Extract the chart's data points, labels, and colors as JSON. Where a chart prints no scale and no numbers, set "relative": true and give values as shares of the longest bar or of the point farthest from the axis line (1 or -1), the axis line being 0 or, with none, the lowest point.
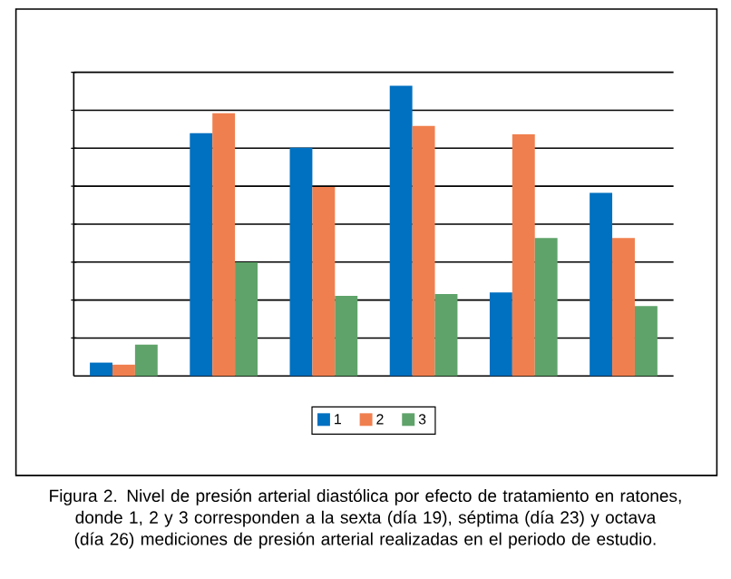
{
  "chart_data": {
    "type": "bar",
    "relative": true,
    "categories": [
      null,
      null,
      null,
      null,
      null,
      null
    ],
    "series": [
      {
        "name": "1",
        "color": "#0070c0",
        "values": [
          0.046,
          0.836,
          0.786,
          1,
          0.288,
          0.631
        ]
      },
      {
        "name": "2",
        "color": "#f07f4f",
        "values": [
          0.039,
          0.905,
          0.651,
          0.861,
          0.832,
          0.475
        ]
      },
      {
        "name": "3",
        "color": "#5fa36a",
        "values": [
          0.108,
          0.392,
          0.276,
          0.282,
          0.475,
          0.241
        ]
      }
    ],
    "grid": "y",
    "legend": "bottom",
    "annotations": [
      "Figura 2. Nivel de presión arterial diastólica por efecto de tratamiento en ratones, donde 1, 2 y 3 corresponden a la sexta (día 19), séptima (día 23) y octava (día 26) mediciones de presión arterial realizadas en el periodo de estudio."
    ]
  }
}
